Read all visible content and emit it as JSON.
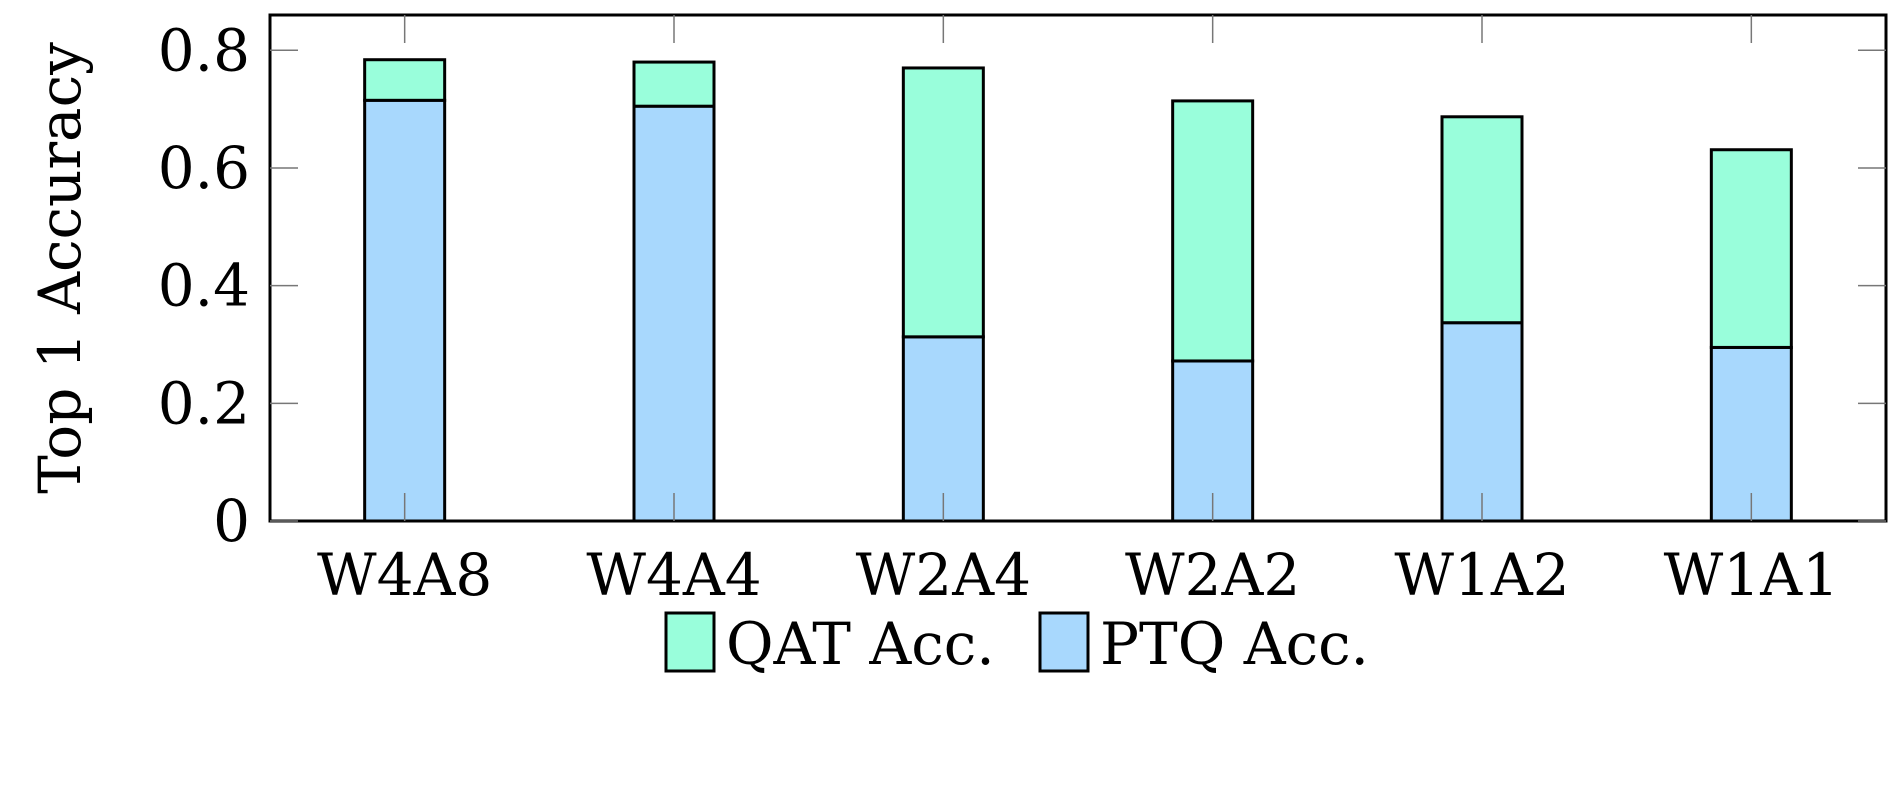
{
  "chart_data": {
    "type": "bar",
    "stacked": true,
    "categories": [
      "W4A8",
      "W4A4",
      "W2A4",
      "W2A2",
      "W1A2",
      "W1A1"
    ],
    "series": [
      {
        "name": "PTQ Acc.",
        "color": "#a8d8fd",
        "values": [
          0.715,
          0.705,
          0.313,
          0.272,
          0.337,
          0.295
        ],
        "totals": [
          0.715,
          0.705,
          0.313,
          0.272,
          0.337,
          0.295
        ]
      },
      {
        "name": "QAT Acc.",
        "color": "#99fedb",
        "values": [
          0.069,
          0.075,
          0.457,
          0.442,
          0.35,
          0.336
        ],
        "totals": [
          0.784,
          0.78,
          0.77,
          0.714,
          0.687,
          0.631
        ]
      }
    ],
    "xlabel": "",
    "ylabel": "Top 1 Accuracy",
    "ylim": [
      0,
      0.86
    ],
    "yticks": [
      "0",
      "0.2",
      "0.4",
      "0.6",
      "0.8"
    ],
    "ytick_values": [
      0,
      0.2,
      0.4,
      0.6,
      0.8
    ],
    "legend": {
      "placement": "bottom-center",
      "order": [
        "QAT Acc.",
        "PTQ Acc."
      ]
    },
    "grid": false,
    "bar_border_color": "#000000"
  }
}
